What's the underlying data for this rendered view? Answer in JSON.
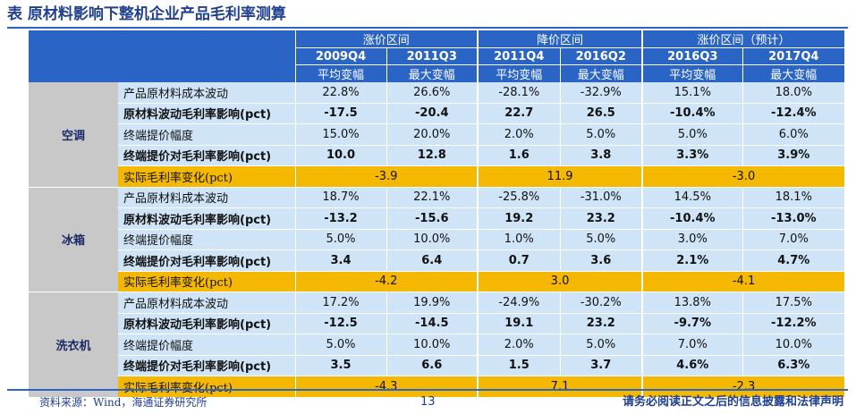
{
  "title": "表 原材料影响下整机企业产品毛利率测算",
  "header": {
    "groups": [
      "涨价区间",
      "降价区间",
      "涨价区间（预计）"
    ],
    "periods": [
      "2009Q4",
      "2011Q3",
      "2011Q4",
      "2016Q2",
      "2016Q3",
      "2017Q4"
    ],
    "measures": [
      "平均变幅",
      "最大变幅",
      "平均变幅",
      "最大变幅",
      "平均变幅",
      "最大变幅"
    ]
  },
  "sections": [
    {
      "product": "空调",
      "rows": [
        {
          "label": "产品原材料成本波动",
          "values": [
            "22.8%",
            "26.6%",
            "-28.1%",
            "-32.9%",
            "15.1%",
            "18.0%"
          ]
        },
        {
          "label": "原材料波动毛利率影响(pct)",
          "values": [
            "-17.5",
            "-20.4",
            "22.7",
            "26.5",
            "-10.4%",
            "-12.4%"
          ]
        },
        {
          "label": "终端提价幅度",
          "values": [
            "15.0%",
            "20.0%",
            "2.0%",
            "5.0%",
            "5.0%",
            "6.0%"
          ]
        },
        {
          "label": "终端提价对毛利率影响(pct)",
          "values": [
            "10.0",
            "12.8",
            "1.6",
            "3.8",
            "3.3%",
            "3.9%"
          ]
        }
      ],
      "summary": {
        "label": "实际毛利率变化(pct)",
        "values": [
          "-3.9",
          "11.9",
          "-3.0"
        ]
      }
    },
    {
      "product": "冰箱",
      "rows": [
        {
          "label": "产品原材料成本波动",
          "values": [
            "18.7%",
            "22.1%",
            "-25.8%",
            "-31.0%",
            "14.5%",
            "18.1%"
          ]
        },
        {
          "label": "原材料波动毛利率影响(pct)",
          "values": [
            "-13.2",
            "-15.6",
            "19.2",
            "23.2",
            "-10.4%",
            "-13.0%"
          ]
        },
        {
          "label": "终端提价幅度",
          "values": [
            "5.0%",
            "10.0%",
            "1.0%",
            "5.0%",
            "3.0%",
            "7.0%"
          ]
        },
        {
          "label": "终端提价对毛利率影响(pct)",
          "values": [
            "3.4",
            "6.4",
            "0.7",
            "3.6",
            "2.1%",
            "4.7%"
          ]
        }
      ],
      "summary": {
        "label": "实际毛利率变化(pct)",
        "values": [
          "-4.2",
          "3.0",
          "-4.1"
        ]
      }
    },
    {
      "product": "洗衣机",
      "rows": [
        {
          "label": "产品原材料成本波动",
          "values": [
            "17.2%",
            "19.9%",
            "-24.9%",
            "-30.2%",
            "13.8%",
            "17.5%"
          ]
        },
        {
          "label": "原材料波动毛利率影响(pct)",
          "values": [
            "-12.5",
            "-14.5",
            "19.1",
            "23.2",
            "-9.7%",
            "-12.2%"
          ]
        },
        {
          "label": "终端提价幅度",
          "values": [
            "5.0%",
            "10.0%",
            "2.0%",
            "5.0%",
            "7.0%",
            "10.0%"
          ]
        },
        {
          "label": "终端提价对毛利率影响(pct)",
          "values": [
            "3.5",
            "6.6",
            "1.5",
            "3.7",
            "4.6%",
            "6.3%"
          ]
        }
      ],
      "summary": {
        "label": "实际毛利率变化(pct)",
        "values": [
          "-4.3",
          "7.1",
          "-2.3"
        ]
      }
    }
  ],
  "footer": {
    "source": "资料来源：Wind，海通证券研究所",
    "page": "13",
    "disclaimer": "请务必阅读正文之后的信息披露和法律声明"
  }
}
